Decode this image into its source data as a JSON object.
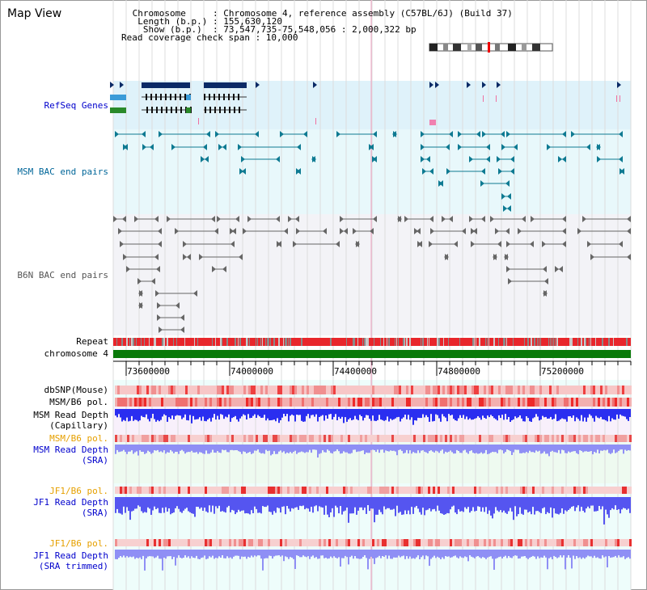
{
  "header": {
    "title": "Map View",
    "info_lines": [
      " Chromosome     : Chromosome 4, reference assembly (C57BL/6J) (Build 37)",
      "  Length (b.p.) : 155,630,120",
      "   Show (b.p.)  : 73,547,735-75,548,056 : 2,000,322 bp",
      "Read coverage check span : 10,000"
    ]
  },
  "tracks": {
    "refseq": "RefSeq Genes",
    "msm_bac": "MSM BAC end pairs",
    "b6n_bac": "B6N BAC end pairs",
    "repeat": "Repeat",
    "chromosome": "chromosome 4",
    "dbsnp": "dbSNP(Mouse)",
    "msm_b6_pol": "MSM/B6 pol.",
    "msm_depth_cap_1": "MSM Read Depth",
    "msm_depth_cap_2": "(Capillary)",
    "msm_b6_pol_2": "MSM/B6 pol.",
    "msm_depth_sra_1": "MSM Read Depth",
    "msm_depth_sra_2": "(SRA)",
    "jf1_b6_pol": "JF1/B6 pol.",
    "jf1_depth_1": "JF1 Read Depth",
    "jf1_depth_2": "(SRA)",
    "jf1_b6_pol_2": "JF1/B6 pol.",
    "jf1_trim_1": "JF1 Read Depth",
    "jf1_trim_2": "(SRA trimmed)"
  },
  "axis": {
    "ticks": [
      "73600000",
      "74000000",
      "74400000",
      "74800000",
      "75200000"
    ]
  },
  "colors": {
    "refseq_bg": "#dff2fa",
    "msm_bg": "#e6f7fb",
    "b6n_bg": "#f2f2f6",
    "repeat": "#e8262b",
    "chromosome": "#0a7a0a",
    "depth_blue": "#2a2ef0",
    "depth_light": "#8f8ff5"
  }
}
